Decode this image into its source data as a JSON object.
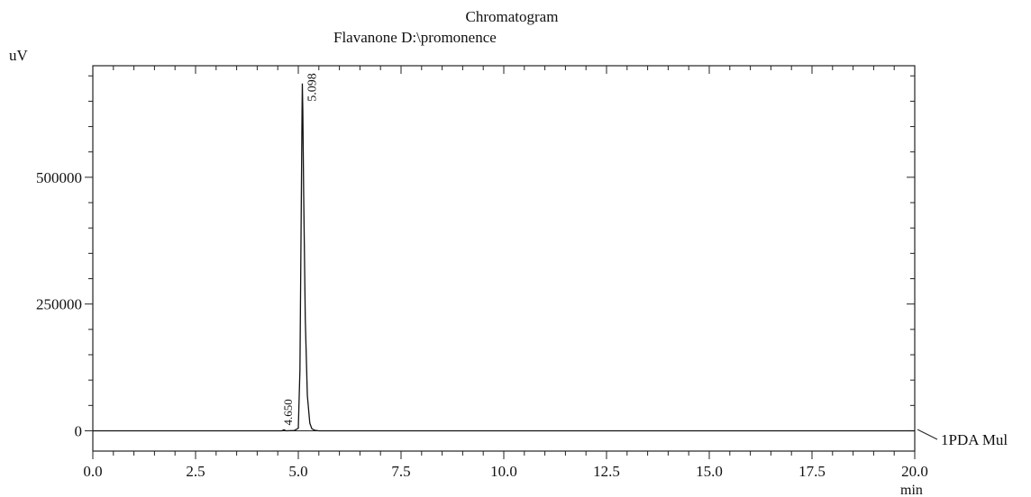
{
  "chart_data": {
    "type": "line",
    "title": "Chromatogram",
    "subtitle": "Flavanone D:\\promonence",
    "ylabel": "uV",
    "xlabel": "min",
    "xlim": [
      0.0,
      20.0
    ],
    "ylim": [
      -40000,
      720000
    ],
    "xticks": [
      0.0,
      2.5,
      5.0,
      7.5,
      10.0,
      12.5,
      15.0,
      17.5,
      20.0
    ],
    "xtick_labels": [
      "0.0",
      "2.5",
      "5.0",
      "7.5",
      "10.0",
      "12.5",
      "15.0",
      "17.5",
      "20.0"
    ],
    "xminor_step": 0.5,
    "yticks": [
      0,
      250000,
      500000
    ],
    "ytick_labels": [
      "0",
      "250000",
      "500000"
    ],
    "yminor_step": 50000,
    "grid": false,
    "series": [
      {
        "name": "1PDA Mul",
        "color": "#111111",
        "x": [
          0.0,
          4.6,
          4.65,
          4.7,
          4.9,
          5.0,
          5.04,
          5.07,
          5.09,
          5.098,
          5.11,
          5.13,
          5.17,
          5.22,
          5.28,
          5.33,
          5.4,
          5.5,
          6.0,
          10.0,
          15.0,
          20.0
        ],
        "y": [
          0,
          0,
          2000,
          0,
          500,
          5000,
          120000,
          420000,
          620000,
          685000,
          630000,
          470000,
          220000,
          70000,
          15000,
          4000,
          1000,
          0,
          0,
          0,
          0,
          0
        ]
      }
    ],
    "peak_labels": [
      "5.098",
      "4.650"
    ],
    "trace_label": "1PDA Mul"
  }
}
